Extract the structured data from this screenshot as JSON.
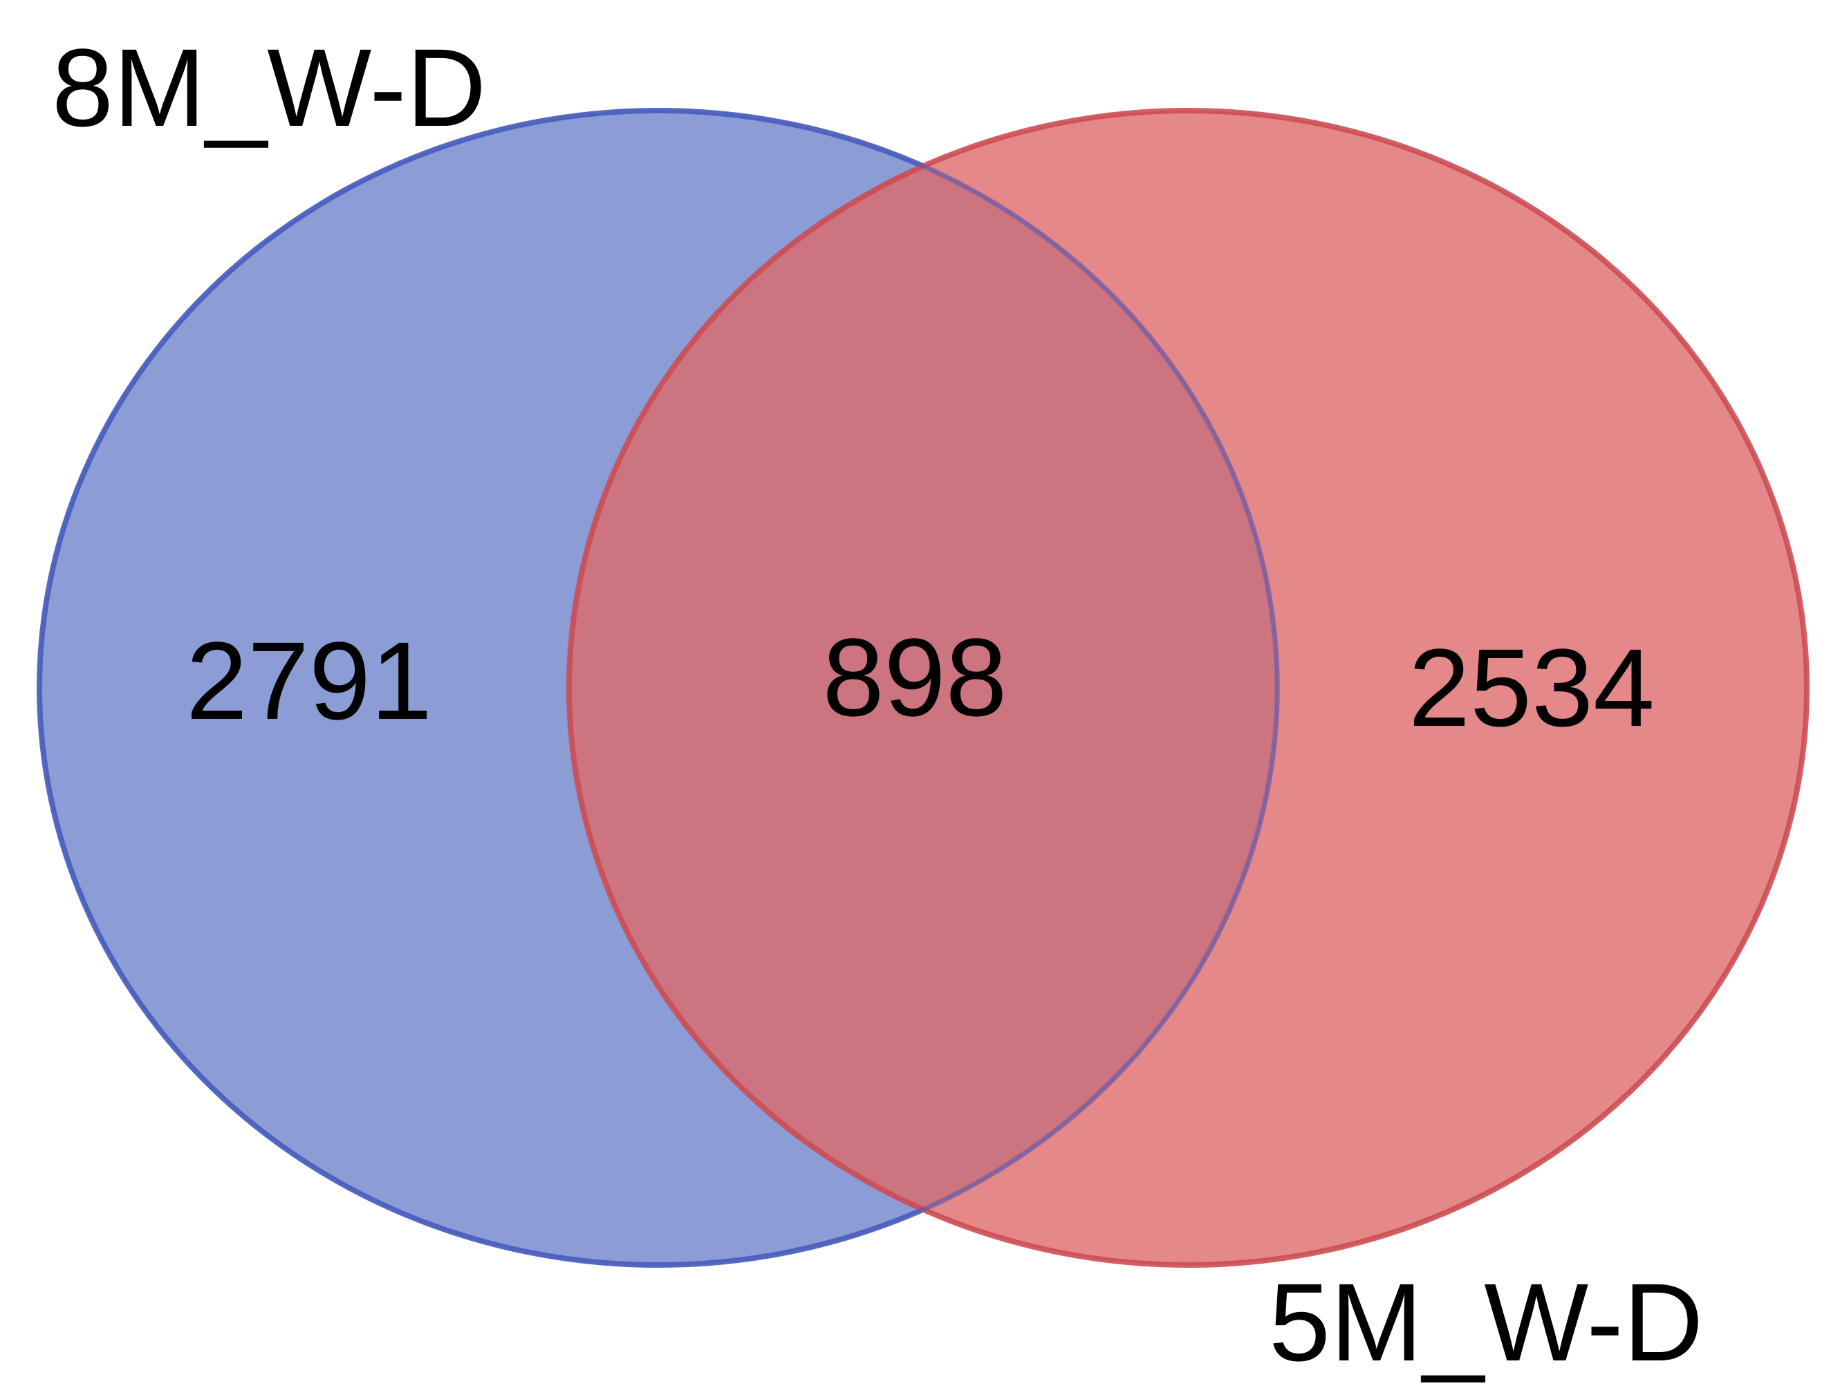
{
  "venn": {
    "sets": [
      {
        "key": "a",
        "label": "8M_W-D",
        "only_count": "2791",
        "fill": "#6f84cc",
        "stroke": "#4a5fbf"
      },
      {
        "key": "b",
        "label": "5M_W-D",
        "only_count": "2534",
        "fill": "#dd6a6c",
        "stroke": "#cc4c52"
      }
    ],
    "intersection_count": "898",
    "intersection_fill": "#a95a76"
  }
}
